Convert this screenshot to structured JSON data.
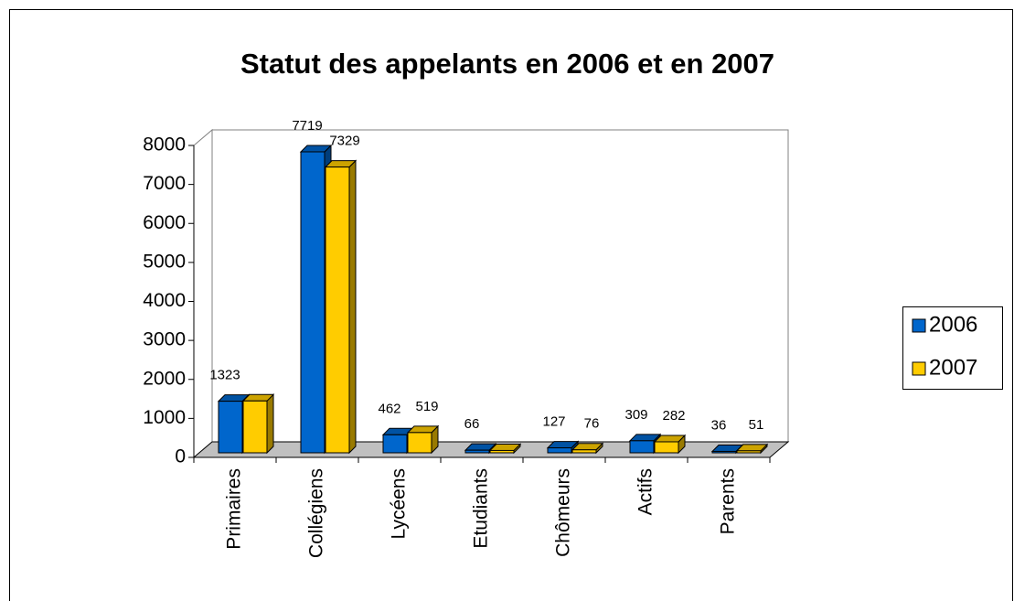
{
  "chart_data": {
    "type": "bar3d",
    "title": "Statut des appelants en 2006 et en 2007",
    "categories": [
      "Primaires",
      "Collégiens",
      "Lycéens",
      "Etudiants",
      "Chômeurs",
      "Actifs",
      "Parents"
    ],
    "series": [
      {
        "name": "2006",
        "color": "#0066cc",
        "values": [
          1323,
          7719,
          462,
          66,
          127,
          309,
          36
        ],
        "value_labels": [
          "1323",
          "7719",
          "462",
          "66",
          "127",
          "309",
          "36"
        ]
      },
      {
        "name": "2007",
        "color": "#ffcc00",
        "values": [
          1330,
          7329,
          519,
          60,
          76,
          282,
          51
        ],
        "value_labels": [
          null,
          "7329",
          "519",
          null,
          "76",
          "282",
          "51"
        ]
      }
    ],
    "ylim": [
      0,
      8000
    ],
    "yticks": [
      0,
      1000,
      2000,
      3000,
      4000,
      5000,
      6000,
      7000,
      8000
    ],
    "legend": "right"
  }
}
